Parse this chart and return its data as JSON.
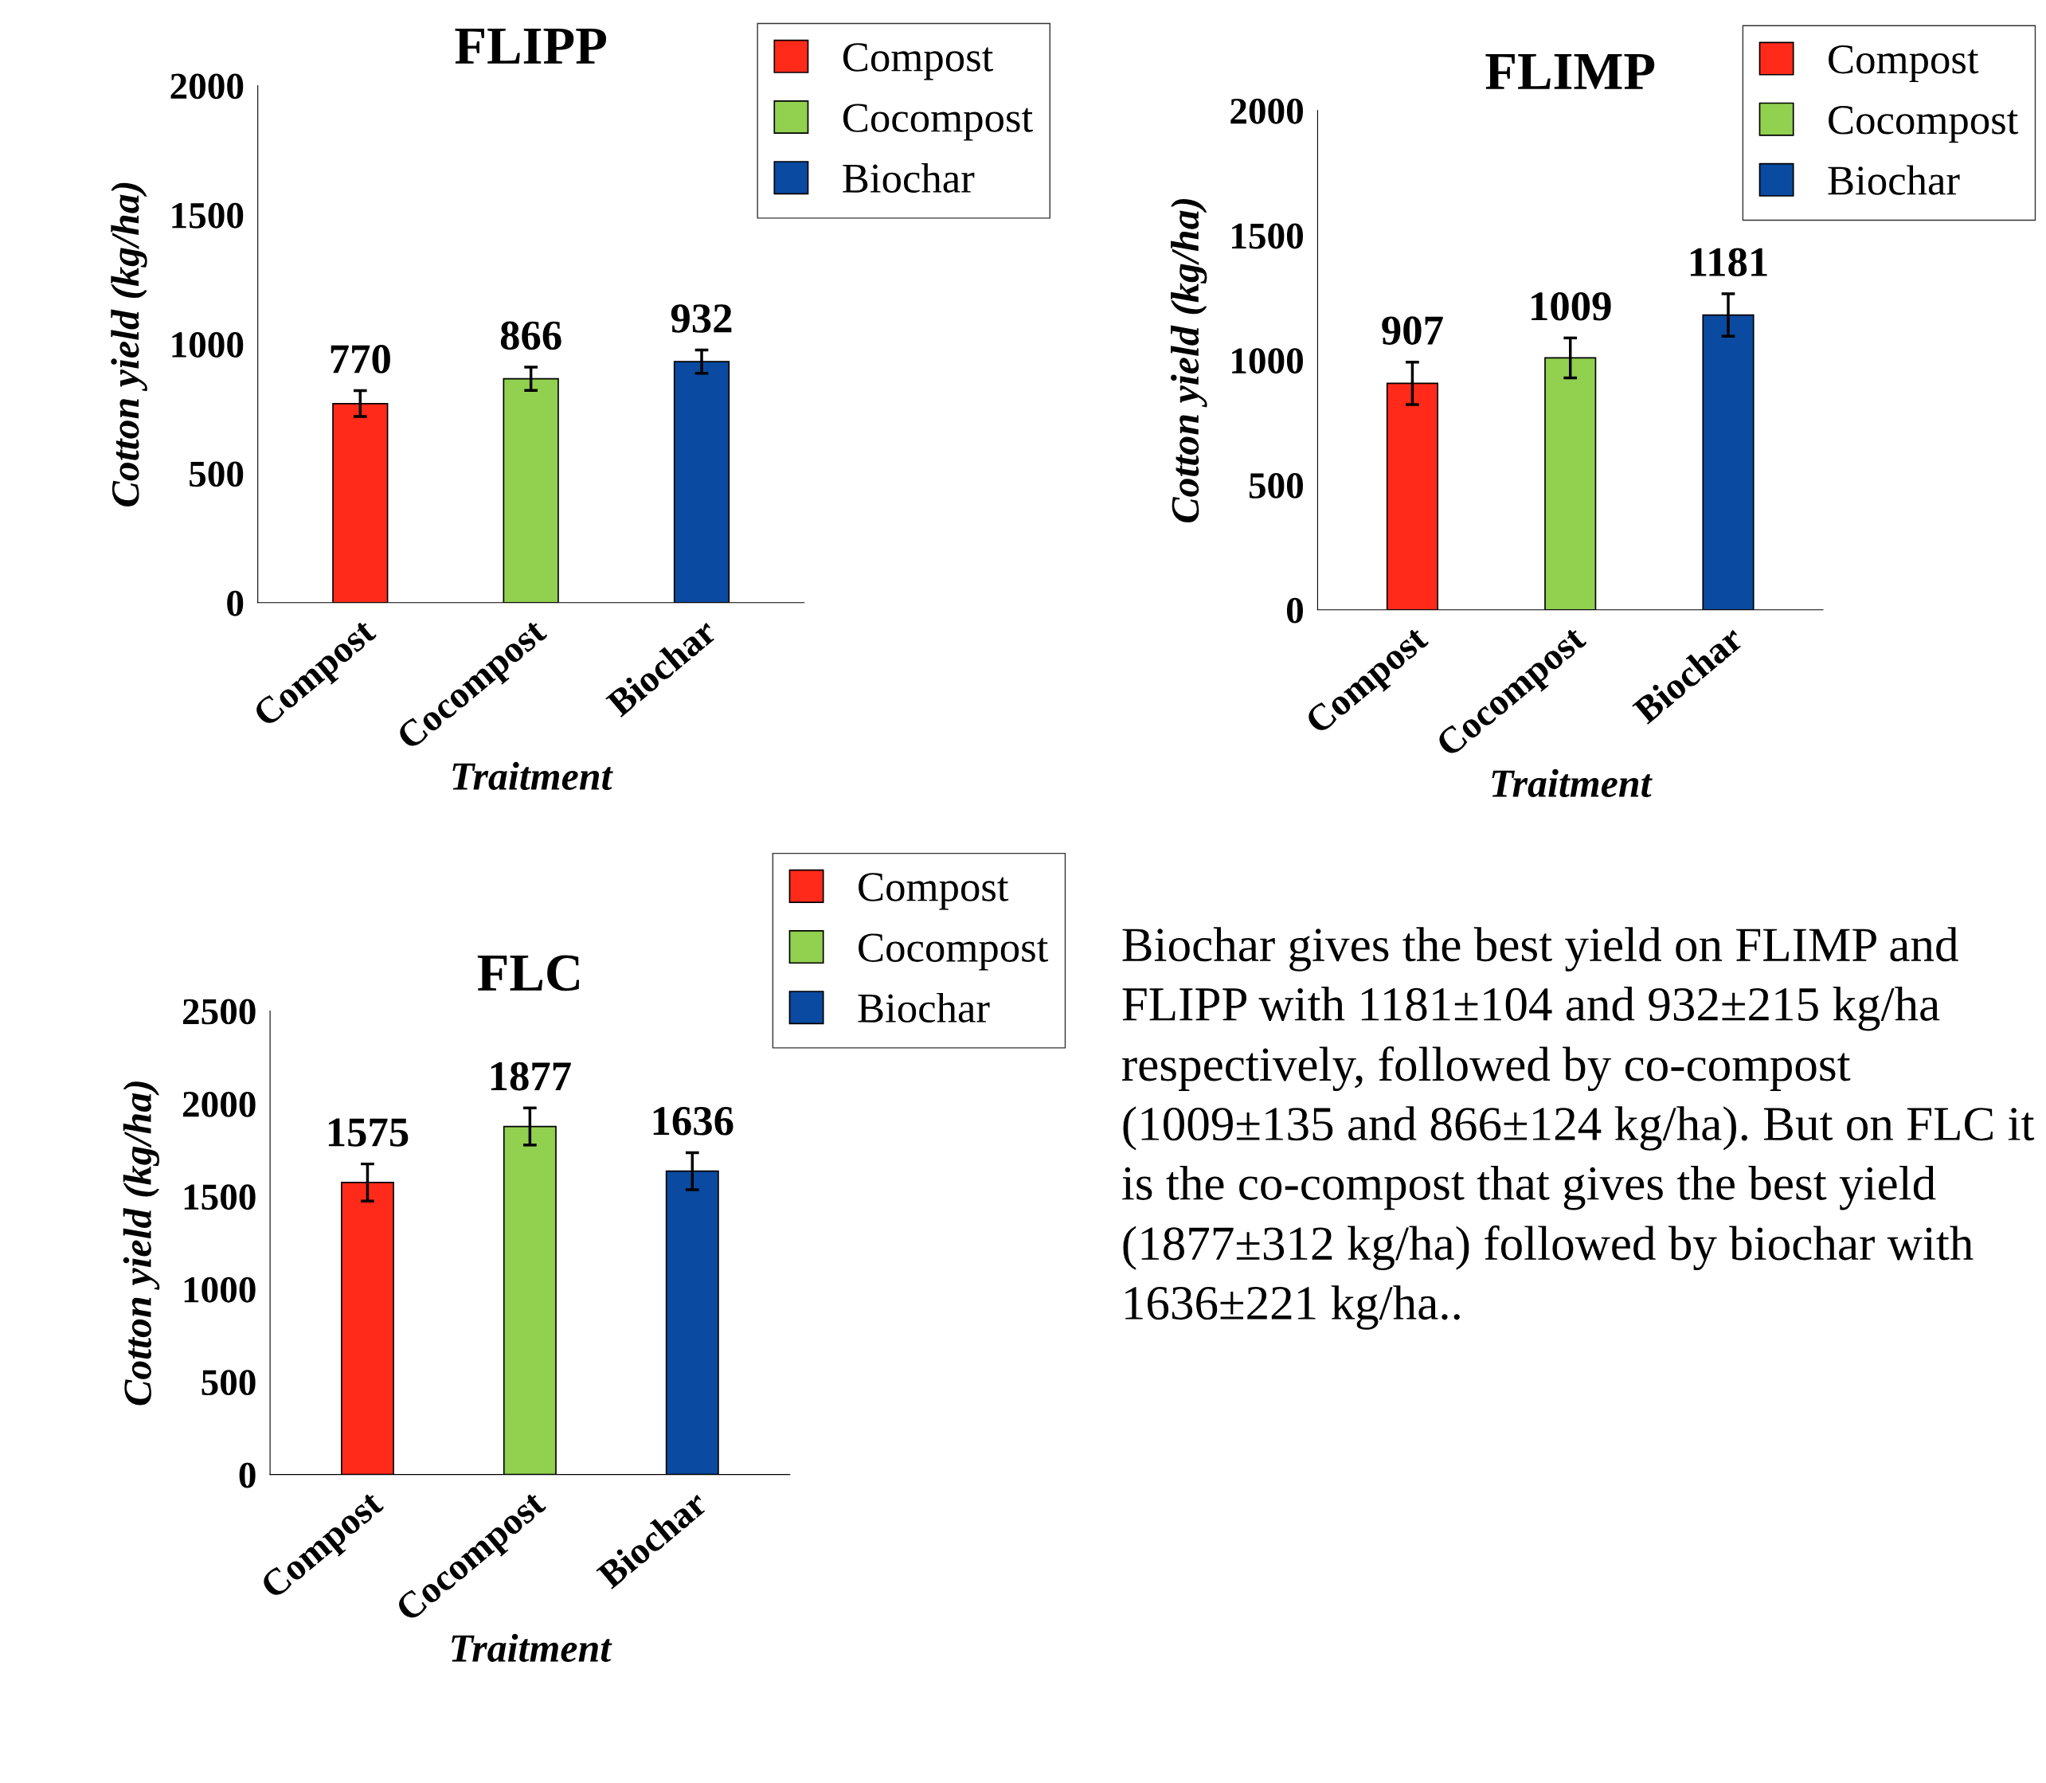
{
  "chart_data": [
    {
      "type": "bar",
      "title": "FLIPP",
      "xlabel": "Traitment",
      "ylabel": "Cotton yield (kg/ha)",
      "categories": [
        "Compost",
        "Cocompost",
        "Biochar"
      ],
      "series": [
        {
          "name": "Compost",
          "color": "#ff2a1a",
          "values": [
            770,
            null,
            null
          ],
          "errors": [
            50,
            null,
            null
          ]
        },
        {
          "name": "Cocompost",
          "color": "#92d050",
          "values": [
            null,
            866,
            null
          ],
          "errors": [
            null,
            45,
            null
          ]
        },
        {
          "name": "Biochar",
          "color": "#0a4aa0",
          "values": [
            null,
            null,
            932
          ],
          "errors": [
            null,
            null,
            45
          ]
        }
      ],
      "ylim": [
        0,
        2000
      ],
      "yticks": [
        0,
        500,
        1000,
        1500,
        2000
      ],
      "data_labels": true,
      "legend": "top right",
      "grid": false
    },
    {
      "type": "bar",
      "title": "FLIMP",
      "xlabel": "Traitment",
      "ylabel": "Cotton yield (kg/ha)",
      "categories": [
        "Compost",
        "Cocompost",
        "Biochar"
      ],
      "series": [
        {
          "name": "Compost",
          "color": "#ff2a1a",
          "values": [
            907,
            null,
            null
          ],
          "errors": [
            85,
            null,
            null
          ]
        },
        {
          "name": "Cocompost",
          "color": "#92d050",
          "values": [
            null,
            1009,
            null
          ],
          "errors": [
            null,
            80,
            null
          ]
        },
        {
          "name": "Biochar",
          "color": "#0a4aa0",
          "values": [
            null,
            null,
            1181
          ],
          "errors": [
            null,
            null,
            85
          ]
        }
      ],
      "ylim": [
        0,
        2000
      ],
      "yticks": [
        0,
        500,
        1000,
        1500,
        2000
      ],
      "data_labels": true,
      "legend": "top right",
      "grid": false
    },
    {
      "type": "bar",
      "title": "FLC",
      "xlabel": "Traitment",
      "ylabel": "Cotton yield (kg/ha)",
      "categories": [
        "Compost",
        "Cocompost",
        "Biochar"
      ],
      "series": [
        {
          "name": "Compost",
          "color": "#ff2a1a",
          "values": [
            1575,
            null,
            null
          ],
          "errors": [
            100,
            null,
            null
          ]
        },
        {
          "name": "Cocompost",
          "color": "#92d050",
          "values": [
            null,
            1877,
            null
          ],
          "errors": [
            null,
            100,
            null
          ]
        },
        {
          "name": "Biochar",
          "color": "#0a4aa0",
          "values": [
            null,
            null,
            1636
          ],
          "errors": [
            null,
            null,
            100
          ]
        }
      ],
      "ylim": [
        0,
        2500
      ],
      "yticks": [
        0,
        500,
        1000,
        1500,
        2000,
        2500
      ],
      "data_labels": true,
      "legend": "top right",
      "grid": false
    },
    {
      "type": "other",
      "annotations": [
        "Biochar gives the best yield on FLIMP and FLIPP with 1181±104 and 932±215 kg/ha respectively, followed by co-compost (1009±135 and 866±124 kg/ha). But on FLC it is the co-compost that gives the best yield (1877±312 kg/ha) followed by biochar with 1636±221 kg/ha.."
      ]
    }
  ]
}
